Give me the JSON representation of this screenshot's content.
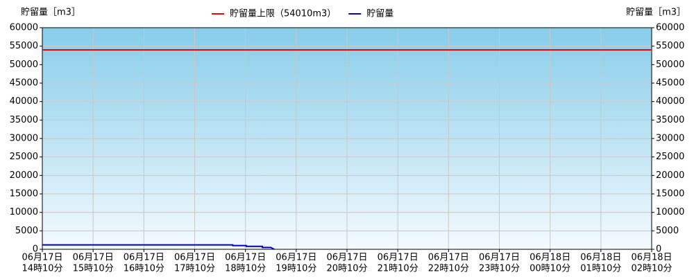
{
  "chart_data": {
    "type": "line",
    "ylabel": "貯留量［m3］",
    "y2label": "貯留量［m3］",
    "ylim": [
      0,
      60000
    ],
    "yticks": [
      0,
      5000,
      10000,
      15000,
      20000,
      25000,
      30000,
      35000,
      40000,
      45000,
      50000,
      55000,
      60000
    ],
    "y2lim": [
      0,
      60000
    ],
    "y2ticks": [
      0,
      5000,
      10000,
      15000,
      20000,
      25000,
      30000,
      35000,
      40000,
      45000,
      50000,
      55000,
      60000
    ],
    "xlim": [
      "06-17 14:10",
      "06-18 02:10"
    ],
    "xticks": [
      {
        "value": "06-17 14:10",
        "label": [
          "06月17日",
          "14時10分"
        ]
      },
      {
        "value": "06-17 15:10",
        "label": [
          "06月17日",
          "15時10分"
        ]
      },
      {
        "value": "06-17 16:10",
        "label": [
          "06月17日",
          "16時10分"
        ]
      },
      {
        "value": "06-17 17:10",
        "label": [
          "06月17日",
          "17時10分"
        ]
      },
      {
        "value": "06-17 18:10",
        "label": [
          "06月17日",
          "18時10分"
        ]
      },
      {
        "value": "06-17 19:10",
        "label": [
          "06月17日",
          "19時10分"
        ]
      },
      {
        "value": "06-17 20:10",
        "label": [
          "06月17日",
          "20時10分"
        ]
      },
      {
        "value": "06-17 21:10",
        "label": [
          "06月17日",
          "21時10分"
        ]
      },
      {
        "value": "06-17 22:10",
        "label": [
          "06月17日",
          "22時10分"
        ]
      },
      {
        "value": "06-17 23:10",
        "label": [
          "06月17日",
          "23時10分"
        ]
      },
      {
        "value": "06-18 00:10",
        "label": [
          "06月18日",
          "00時10分"
        ]
      },
      {
        "value": "06-18 01:10",
        "label": [
          "06月18日",
          "01時10分"
        ]
      },
      {
        "value": "06-18 02:10",
        "label": [
          "06月18日",
          "02時10分"
        ]
      }
    ],
    "grid": true,
    "limit": {
      "name": "貯留量上限（54010m3）",
      "value": 54010,
      "color": "#ff0000"
    },
    "series": [
      {
        "name": "貯留量",
        "color": "#0000cc",
        "x": [
          "06-17 14:10",
          "06-17 17:55",
          "06-17 17:55",
          "06-17 18:11",
          "06-17 18:11",
          "06-17 18:30",
          "06-17 18:30",
          "06-17 18:40",
          "06-17 18:40",
          "06-17 18:44"
        ],
        "values": [
          1200,
          1200,
          1000,
          1000,
          800,
          800,
          500,
          500,
          500,
          0
        ]
      }
    ]
  }
}
